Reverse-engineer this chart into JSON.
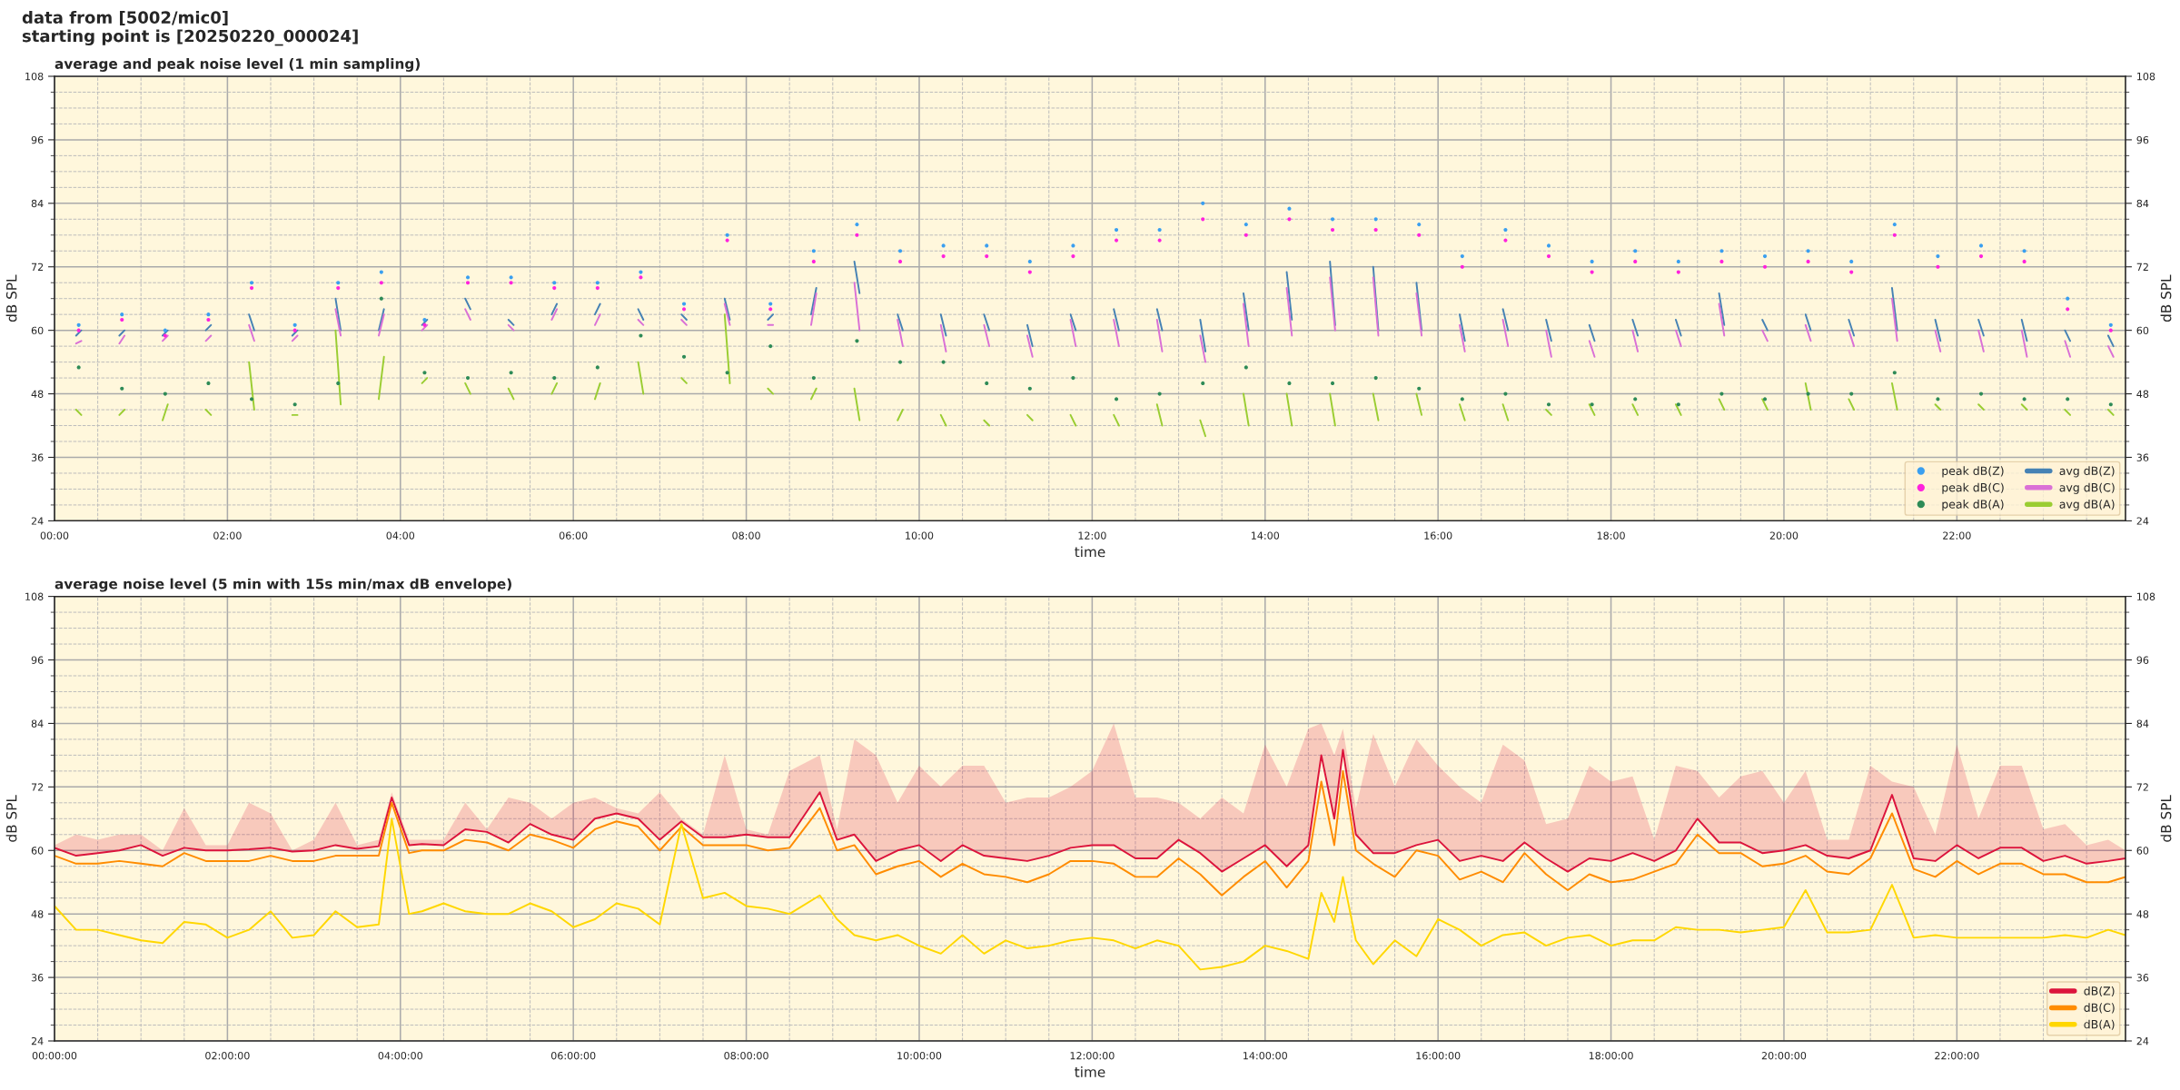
{
  "chart_data": [
    {
      "type": "line",
      "title": "average and peak noise level (1 min sampling)",
      "xlabel": "time",
      "ylabel": "dB SPL",
      "y2label": "dB SPL",
      "annotations": [
        "data from [5002/mic0]",
        "starting point is [20250220_000024]"
      ],
      "x": [
        0.25,
        0.31,
        0.33,
        0.75,
        0.81,
        0.83,
        1.25,
        1.31,
        1.33,
        1.75,
        1.81,
        1.83,
        2.25,
        2.31,
        2.33,
        2.75,
        2.81,
        2.83,
        3.25,
        3.31,
        3.33,
        3.75,
        3.81,
        3.83,
        4.25,
        4.31,
        4.33,
        4.75,
        4.81,
        4.83,
        5.25,
        5.31,
        5.33,
        5.75,
        5.81,
        5.83,
        6.25,
        6.31,
        6.33,
        6.75,
        6.81,
        6.83,
        7.25,
        7.31,
        7.33,
        7.75,
        7.81,
        7.83,
        8.25,
        8.31,
        8.33,
        8.75,
        8.81,
        8.83,
        9.25,
        9.31,
        9.33,
        9.75,
        9.81,
        9.83,
        10.25,
        10.31,
        10.33,
        10.75,
        10.81,
        10.83,
        11.25,
        11.31,
        11.33,
        11.75,
        11.81,
        11.83,
        12.25,
        12.31,
        12.33,
        12.75,
        12.81,
        12.83,
        13.25,
        13.31,
        13.33,
        13.75,
        13.81,
        13.83,
        14.25,
        14.31,
        14.33,
        14.75,
        14.81,
        14.83,
        15.25,
        15.31,
        15.33,
        15.75,
        15.81,
        15.83,
        16.25,
        16.31,
        16.33,
        16.75,
        16.81,
        16.83,
        17.25,
        17.31,
        17.33,
        17.75,
        17.81,
        17.83,
        18.25,
        18.31,
        18.33,
        18.75,
        18.81,
        18.83,
        19.25,
        19.31,
        19.33,
        19.75,
        19.81,
        19.83,
        20.25,
        20.31,
        20.33,
        20.75,
        20.81,
        20.83,
        21.25,
        21.31,
        21.33,
        21.75,
        21.81,
        21.83,
        22.25,
        22.31,
        22.33,
        22.75,
        22.81,
        22.83,
        23.25,
        23.31,
        23.33,
        23.75,
        23.81
      ],
      "series": [
        {
          "name": "peak dB(Z)",
          "type": "scatter",
          "marker": "circle",
          "color": "#3a9ff0",
          "x": [
            0.28,
            0.78,
            1.28,
            1.78,
            2.28,
            2.78,
            3.28,
            3.78,
            4.28,
            4.78,
            5.28,
            5.78,
            6.28,
            6.78,
            7.28,
            7.78,
            8.28,
            8.78,
            9.28,
            9.78,
            10.28,
            10.78,
            11.28,
            11.78,
            12.28,
            12.78,
            13.28,
            13.78,
            14.28,
            14.78,
            15.28,
            15.78,
            16.28,
            16.78,
            17.28,
            17.78,
            18.28,
            18.78,
            19.28,
            19.78,
            20.28,
            20.78,
            21.28,
            21.78,
            22.28,
            22.78,
            23.28,
            23.78
          ],
          "values": [
            61,
            63,
            60,
            63,
            69,
            61,
            69,
            71,
            62,
            70,
            70,
            69,
            69,
            71,
            65,
            78,
            65,
            75,
            80,
            75,
            76,
            76,
            73,
            76,
            79,
            79,
            84,
            80,
            83,
            81,
            81,
            80,
            74,
            79,
            76,
            73,
            75,
            73,
            75,
            74,
            75,
            73,
            80,
            74,
            76,
            75,
            66,
            61
          ]
        },
        {
          "name": "peak dB(C)",
          "type": "scatter",
          "marker": "circle",
          "color": "#ff22dd",
          "x": [
            0.28,
            0.78,
            1.28,
            1.78,
            2.28,
            2.78,
            3.28,
            3.78,
            4.28,
            4.78,
            5.28,
            5.78,
            6.28,
            6.78,
            7.28,
            7.78,
            8.28,
            8.78,
            9.28,
            9.78,
            10.28,
            10.78,
            11.28,
            11.78,
            12.28,
            12.78,
            13.28,
            13.78,
            14.28,
            14.78,
            15.28,
            15.78,
            16.28,
            16.78,
            17.28,
            17.78,
            18.28,
            18.78,
            19.28,
            19.78,
            20.28,
            20.78,
            21.28,
            21.78,
            22.28,
            22.78,
            23.28,
            23.78
          ],
          "values": [
            60,
            62,
            59,
            62,
            68,
            60,
            68,
            69,
            61,
            69,
            69,
            68,
            68,
            70,
            64,
            77,
            64,
            73,
            78,
            73,
            74,
            74,
            71,
            74,
            77,
            77,
            81,
            78,
            81,
            79,
            79,
            78,
            72,
            77,
            74,
            71,
            73,
            71,
            73,
            72,
            73,
            71,
            78,
            72,
            74,
            73,
            64,
            60
          ]
        },
        {
          "name": "peak dB(A)",
          "type": "scatter",
          "marker": "circle",
          "color": "#2e8b57",
          "x": [
            0.28,
            0.78,
            1.28,
            1.78,
            2.28,
            2.78,
            3.28,
            3.78,
            4.28,
            4.78,
            5.28,
            5.78,
            6.28,
            6.78,
            7.28,
            7.78,
            8.28,
            8.78,
            9.28,
            9.78,
            10.28,
            10.78,
            11.28,
            11.78,
            12.28,
            12.78,
            13.28,
            13.78,
            14.28,
            14.78,
            15.28,
            15.78,
            16.28,
            16.78,
            17.28,
            17.78,
            18.28,
            18.78,
            19.28,
            19.78,
            20.28,
            20.78,
            21.28,
            21.78,
            22.28,
            22.78,
            23.28,
            23.78
          ],
          "values": [
            53,
            49,
            48,
            50,
            47,
            46,
            50,
            66,
            52,
            51,
            52,
            51,
            53,
            59,
            55,
            52,
            57,
            51,
            58,
            54,
            54,
            50,
            49,
            51,
            47,
            48,
            50,
            53,
            50,
            50,
            51,
            49,
            47,
            48,
            46,
            46,
            47,
            46,
            48,
            47,
            48,
            48,
            52,
            47,
            48,
            47,
            47,
            46
          ]
        },
        {
          "name": "avg dB(Z)",
          "type": "line",
          "color": "#4682b4",
          "values": [
            59,
            60,
            null,
            59,
            60,
            null,
            59,
            60,
            null,
            60,
            61,
            null,
            63,
            60,
            null,
            59,
            60,
            null,
            66,
            60,
            null,
            60,
            64,
            null,
            61,
            62,
            null,
            66,
            64,
            null,
            62,
            61,
            null,
            63,
            65,
            null,
            63,
            65,
            null,
            64,
            62,
            null,
            63,
            62,
            null,
            66,
            62,
            null,
            62,
            63,
            null,
            63,
            68,
            null,
            73,
            67,
            null,
            63,
            60,
            null,
            63,
            59,
            null,
            63,
            60,
            null,
            61,
            57,
            null,
            63,
            60,
            null,
            64,
            60,
            null,
            64,
            60,
            null,
            62,
            56,
            null,
            67,
            60,
            null,
            71,
            62,
            null,
            73,
            61,
            null,
            72,
            60,
            null,
            69,
            60,
            null,
            63,
            58,
            null,
            64,
            60,
            null,
            62,
            58,
            null,
            61,
            58,
            null,
            62,
            59,
            null,
            62,
            59,
            null,
            67,
            61,
            null,
            62,
            60,
            null,
            63,
            60,
            null,
            62,
            59,
            null,
            68,
            60,
            null,
            62,
            58,
            null,
            62,
            59,
            null,
            62,
            58,
            null,
            60,
            58,
            null,
            59,
            57
          ]
        },
        {
          "name": "avg dB(C)",
          "type": "line",
          "color": "#da70d6",
          "values": [
            57.5,
            58,
            null,
            57.5,
            59,
            null,
            58,
            59,
            null,
            58,
            59,
            null,
            61,
            58,
            null,
            58,
            59,
            null,
            64,
            59,
            null,
            59,
            63,
            null,
            60,
            61,
            null,
            64,
            62,
            null,
            61,
            60,
            null,
            62,
            64,
            null,
            61,
            63,
            null,
            62,
            61,
            null,
            62,
            61,
            null,
            65,
            61,
            null,
            61,
            61,
            null,
            61,
            67,
            null,
            69,
            60,
            null,
            62,
            57,
            null,
            61,
            56,
            null,
            61,
            57,
            null,
            59,
            55,
            null,
            62,
            57,
            null,
            62,
            57,
            null,
            62,
            56,
            null,
            59,
            54,
            null,
            65,
            57,
            null,
            68,
            59,
            null,
            70,
            60,
            null,
            70,
            59,
            null,
            67,
            59,
            null,
            61,
            56,
            null,
            62,
            57,
            null,
            60,
            55,
            null,
            58,
            55,
            null,
            60,
            56,
            null,
            60,
            57,
            null,
            65,
            59,
            null,
            60,
            58,
            null,
            61,
            58,
            null,
            60,
            57,
            null,
            66,
            58,
            null,
            60,
            56,
            null,
            60,
            56,
            null,
            60,
            55,
            null,
            58,
            55,
            null,
            57,
            55
          ]
        },
        {
          "name": "avg dB(A)",
          "type": "line",
          "color": "#9acd32",
          "values": [
            45,
            44,
            null,
            44,
            45,
            null,
            43,
            46,
            null,
            45,
            44,
            null,
            54,
            45,
            null,
            44,
            44,
            null,
            60,
            46,
            null,
            47,
            55,
            null,
            50,
            51,
            null,
            50,
            48,
            null,
            49,
            47,
            null,
            48,
            50,
            null,
            47,
            50,
            null,
            54,
            48,
            null,
            51,
            50,
            null,
            63,
            50,
            null,
            49,
            48,
            null,
            47,
            49,
            null,
            49,
            43,
            null,
            43,
            45,
            null,
            44,
            42,
            null,
            43,
            42,
            null,
            44,
            43,
            null,
            44,
            42,
            null,
            44,
            42,
            null,
            46,
            42,
            null,
            43,
            40,
            null,
            48,
            42,
            null,
            48,
            42,
            null,
            48,
            42,
            null,
            48,
            43,
            null,
            48,
            44,
            null,
            46,
            43,
            null,
            46,
            43,
            null,
            45,
            44,
            null,
            46,
            44,
            null,
            46,
            44,
            null,
            46,
            44,
            null,
            47,
            45,
            null,
            47,
            45,
            null,
            50,
            45,
            null,
            47,
            45,
            null,
            50,
            45,
            null,
            46,
            45,
            null,
            46,
            45,
            null,
            46,
            45,
            null,
            45,
            44,
            null,
            45,
            44
          ]
        }
      ],
      "xlim": [
        0,
        23.95
      ],
      "xticks": [
        {
          "value": 0,
          "label": "00:00"
        },
        {
          "value": 2,
          "label": "02:00"
        },
        {
          "value": 4,
          "label": "04:00"
        },
        {
          "value": 6,
          "label": "06:00"
        },
        {
          "value": 8,
          "label": "08:00"
        },
        {
          "value": 10,
          "label": "10:00"
        },
        {
          "value": 12,
          "label": "12:00"
        },
        {
          "value": 14,
          "label": "14:00"
        },
        {
          "value": 16,
          "label": "16:00"
        },
        {
          "value": 18,
          "label": "18:00"
        },
        {
          "value": 20,
          "label": "20:00"
        },
        {
          "value": 22,
          "label": "22:00"
        }
      ],
      "ylim": [
        24,
        108
      ],
      "yticks": [
        24,
        36,
        48,
        60,
        72,
        84,
        96,
        108
      ],
      "y2lim": [
        24,
        108
      ],
      "y2ticks": [
        24,
        36,
        48,
        60,
        72,
        84,
        96,
        108
      ],
      "grid": true,
      "legend": "bottom right"
    },
    {
      "type": "line",
      "title": "average noise level (5 min with 15s min/max dB envelope)",
      "xlabel": "time",
      "ylabel": "dB SPL",
      "y2label": "dB SPL",
      "x": [
        0,
        0.25,
        0.5,
        0.75,
        1,
        1.25,
        1.5,
        1.75,
        2,
        2.25,
        2.5,
        2.75,
        3,
        3.25,
        3.5,
        3.75,
        3.9,
        4.1,
        4.25,
        4.5,
        4.75,
        5,
        5.25,
        5.5,
        5.75,
        6,
        6.25,
        6.5,
        6.75,
        7,
        7.25,
        7.5,
        7.75,
        8,
        8.25,
        8.5,
        8.85,
        9.05,
        9.25,
        9.5,
        9.75,
        10,
        10.25,
        10.5,
        10.75,
        11,
        11.25,
        11.5,
        11.75,
        12,
        12.25,
        12.5,
        12.75,
        13,
        13.25,
        13.5,
        13.75,
        14,
        14.25,
        14.5,
        14.65,
        14.8,
        14.9,
        15.05,
        15.25,
        15.5,
        15.75,
        16,
        16.25,
        16.5,
        16.75,
        17,
        17.25,
        17.5,
        17.75,
        18,
        18.25,
        18.5,
        18.75,
        19,
        19.25,
        19.5,
        19.75,
        20,
        20.25,
        20.5,
        20.75,
        21,
        21.25,
        21.5,
        21.75,
        22,
        22.25,
        22.5,
        22.75,
        23,
        23.25,
        23.5,
        23.75,
        23.95
      ],
      "series": [
        {
          "name": "dB(Z)",
          "color": "#dc143c",
          "values": [
            60.5,
            59,
            59.5,
            60,
            61,
            59,
            60.5,
            60,
            60,
            60.2,
            60.5,
            59.8,
            60,
            61,
            60.3,
            60.8,
            70,
            61,
            61.2,
            61,
            64,
            63.5,
            61.5,
            65,
            63,
            62,
            66,
            67,
            66,
            62,
            65.5,
            62.5,
            62.5,
            63,
            62.5,
            62.5,
            71,
            62,
            63,
            58,
            60,
            61,
            58,
            61,
            59,
            58.5,
            58,
            59,
            60.5,
            61,
            61,
            58.5,
            58.5,
            62,
            59.5,
            56,
            58.5,
            61,
            57,
            61,
            78,
            66,
            79,
            63,
            59.5,
            59.5,
            61,
            62,
            58,
            59,
            58,
            61.5,
            58.5,
            56,
            58.5,
            58,
            59.5,
            58,
            60,
            66,
            61.5,
            61.5,
            59.5,
            60,
            61,
            59,
            58.5,
            60,
            70.5,
            58.5,
            58,
            61,
            58.5,
            60.5,
            60.5,
            58,
            59,
            57.5,
            58,
            58.5
          ],
          "lower": [
            60.5,
            59,
            59.5,
            60,
            61,
            59,
            60.5,
            60,
            60,
            60.2,
            60.5,
            59.8,
            60,
            61,
            60.3,
            60.8,
            70,
            61,
            61.2,
            61,
            64,
            63.5,
            61.5,
            65,
            63,
            62,
            66,
            67,
            66,
            62,
            65.5,
            62.5,
            62.5,
            63,
            62.5,
            62.5,
            71,
            62,
            63,
            58,
            60,
            61,
            58,
            61,
            59,
            58.5,
            58,
            59,
            60.5,
            61,
            61,
            58.5,
            58.5,
            62,
            59.5,
            56,
            58.5,
            61,
            57,
            61,
            78,
            66,
            79,
            63,
            59.5,
            59.5,
            61,
            62,
            58,
            59,
            58,
            61.5,
            58.5,
            56,
            58.5,
            58,
            59.5,
            58,
            60,
            66,
            61.5,
            61.5,
            59.5,
            60,
            61,
            59,
            58.5,
            60,
            70.5,
            58.5,
            58,
            61,
            58.5,
            60.5,
            60.5,
            58,
            59,
            57.5,
            58,
            58.5
          ],
          "upper": [
            61,
            63,
            62,
            63,
            63,
            60,
            68,
            61,
            61,
            69,
            67,
            60,
            62,
            69,
            61,
            62,
            71,
            62,
            62,
            62,
            69,
            64,
            70,
            69,
            66,
            69,
            70,
            68,
            67,
            71,
            66,
            63,
            78,
            64,
            63,
            75,
            78,
            64,
            81,
            78,
            69,
            76,
            72,
            76,
            76,
            69,
            70,
            70,
            72,
            75,
            84,
            70,
            70,
            69,
            66,
            70,
            67,
            80,
            72,
            83,
            84,
            78,
            83,
            68,
            82,
            72,
            81,
            76,
            72,
            69,
            80,
            77,
            65,
            66,
            76,
            73,
            74,
            62,
            76,
            75,
            70,
            74,
            75,
            69,
            75,
            62,
            62,
            76,
            73,
            72,
            63,
            80,
            66,
            76,
            76,
            64,
            65,
            61,
            62,
            60
          ]
        },
        {
          "name": "dB(C)",
          "color": "#ff8c00",
          "values": [
            59,
            57.5,
            57.5,
            58,
            57.5,
            57,
            59.5,
            58,
            58,
            58,
            59,
            58,
            58,
            59,
            59,
            59,
            69,
            59.5,
            60,
            60,
            62,
            61.5,
            60,
            63,
            62,
            60.5,
            64,
            65.5,
            64.5,
            60,
            64.5,
            61,
            61,
            61,
            60,
            60.5,
            68,
            60,
            61,
            55.5,
            57,
            58,
            55,
            57.5,
            55.5,
            55,
            54,
            55.5,
            58,
            58,
            57.5,
            55,
            55,
            58.5,
            55.5,
            51.5,
            55,
            58,
            53,
            58,
            73,
            61,
            75,
            60,
            57.5,
            55,
            60,
            59,
            54.5,
            56,
            54,
            59.5,
            55.5,
            52.5,
            55.5,
            54,
            54.5,
            56,
            57.5,
            63,
            59.5,
            59.5,
            57,
            57.5,
            59,
            56,
            55.5,
            58.5,
            67,
            56.5,
            55,
            58,
            55.5,
            57.5,
            57.5,
            55.5,
            55.5,
            54,
            54,
            55
          ]
        },
        {
          "name": "dB(A)",
          "color": "#ffd700",
          "values": [
            49.5,
            45,
            45,
            44,
            43,
            42.5,
            46.5,
            46,
            43.5,
            45,
            48.5,
            43.5,
            44,
            48.5,
            45.5,
            46,
            66,
            48,
            48.5,
            50,
            48.5,
            48,
            48,
            50,
            48.5,
            45.5,
            47,
            50,
            49,
            46,
            65,
            51,
            52,
            49.5,
            49,
            48,
            51.5,
            47,
            44,
            43,
            44,
            42,
            40.5,
            44,
            40.5,
            43,
            41.5,
            42,
            43,
            43.5,
            43,
            41.5,
            43,
            42,
            37.5,
            38,
            39,
            42,
            41,
            39.5,
            52,
            46.5,
            55,
            43,
            38.5,
            43,
            40,
            47,
            45,
            42,
            44,
            44.5,
            42,
            43.5,
            44,
            42,
            43,
            43,
            45.5,
            45,
            45,
            44.5,
            45,
            45.5,
            52.5,
            44.5,
            44.5,
            45,
            53.5,
            43.5,
            44,
            43.5,
            43.5,
            43.5,
            43.5,
            43.5,
            44,
            43.5,
            45,
            44
          ]
        }
      ],
      "xlim": [
        0,
        23.95
      ],
      "xticks": [
        {
          "value": 0,
          "label": "00:00:00"
        },
        {
          "value": 2,
          "label": "02:00:00"
        },
        {
          "value": 4,
          "label": "04:00:00"
        },
        {
          "value": 6,
          "label": "06:00:00"
        },
        {
          "value": 8,
          "label": "08:00:00"
        },
        {
          "value": 10,
          "label": "10:00:00"
        },
        {
          "value": 12,
          "label": "12:00:00"
        },
        {
          "value": 14,
          "label": "14:00:00"
        },
        {
          "value": 16,
          "label": "16:00:00"
        },
        {
          "value": 18,
          "label": "18:00:00"
        },
        {
          "value": 20,
          "label": "20:00:00"
        },
        {
          "value": 22,
          "label": "22:00:00"
        }
      ],
      "ylim": [
        24,
        108
      ],
      "yticks": [
        24,
        36,
        48,
        60,
        72,
        84,
        96,
        108
      ],
      "y2lim": [
        24,
        108
      ],
      "y2ticks": [
        24,
        36,
        48,
        60,
        72,
        84,
        96,
        108
      ],
      "grid": true,
      "legend": "bottom right"
    }
  ]
}
